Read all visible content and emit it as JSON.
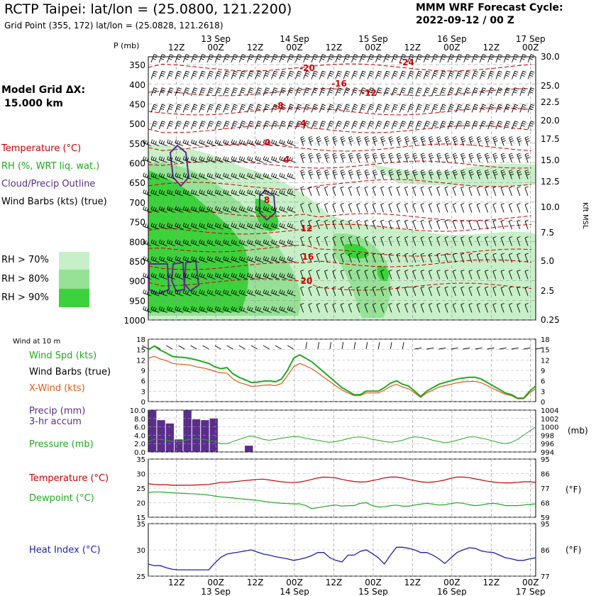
{
  "header": {
    "title": "RCTP Taipei:  lat/lon = (25.0800, 121.2200)",
    "subtitle": "Grid Point (355, 172) lat/lon = (25.0828, 121.2618)",
    "forecast_line1": "MMM WRF Forecast Cycle:",
    "forecast_line2": "2022-09-12 / 00  Z",
    "model_grid_line1": "Model Grid ΔX:",
    "model_grid_line2": "15.000 km"
  },
  "time_axis": {
    "hour_labels": [
      "12Z",
      "00Z",
      "12Z",
      "00Z",
      "12Z",
      "00Z",
      "12Z",
      "00Z",
      "12Z",
      "00Z"
    ],
    "day_labels": [
      "13 Sep",
      "14 Sep",
      "15 Sep",
      "16 Sep",
      "17 Sep"
    ]
  },
  "legend": {
    "temperature": "Temperature (°C)",
    "rh": "RH (%, WRT liq. wat.)",
    "cloud": "Cloud/Precip Outline",
    "wind_barbs": "Wind Barbs (kts) (true)",
    "rh70": "RH > 70%",
    "rh80": "RH > 80%",
    "rh90": "RH > 90%",
    "wind_at_10m": "Wind at 10 m",
    "wind_spd": "Wind Spd (kts)",
    "wind_barbs_true": "Wind Barbs (true)",
    "x_wind": "X-Wind (kts)",
    "precip1": "Precip (mm)",
    "precip2": "3-hr accum",
    "pressure": "Pressure (mb)",
    "temperature_sfc": "Temperature (°C)",
    "dewpoint": "Dewpoint (°C)",
    "heat_index": "Heat Index (°C)"
  },
  "colors": {
    "temperature": "#cc0000",
    "rh_green": "#22aa22",
    "cloud": "#5a2d8c",
    "xwind": "#e05a1a",
    "heat_index": "#1f1fb4",
    "rh70": "#c8f0c8",
    "rh80": "#96e196",
    "rh90": "#3cd23c"
  },
  "chart_data": [
    {
      "type": "heatmap",
      "panel": "cross-section",
      "ylabel": "P (mb)",
      "ylabel_right": "Kft MSL",
      "pressure_ticks": [
        "350",
        "400",
        "450",
        "500",
        "550",
        "600",
        "650",
        "700",
        "750",
        "800",
        "850",
        "900",
        "950",
        "1000"
      ],
      "height_ticks": [
        "30.0",
        "25.0",
        "22.5",
        "20.0",
        "17.5",
        "15.0",
        "12.5",
        "10.0",
        "7.5",
        "5.0",
        "2.5",
        "0.25"
      ],
      "temperature_contour_labels": [
        "-24",
        "-20",
        "-16",
        "-12",
        "-8",
        "-4",
        "0",
        "4",
        "8",
        "12",
        "16",
        "20"
      ]
    },
    {
      "type": "line",
      "panel": "10 m wind",
      "yticks": [
        "18",
        "15",
        "12",
        "9",
        "6",
        "3",
        "0"
      ],
      "ylim": [
        0,
        18
      ],
      "series": [
        {
          "name": "Wind Spd (kts)",
          "values": [
            15.0,
            16.0,
            14.8,
            14.0,
            13.0,
            12.8,
            12.7,
            12.4,
            12.0,
            11.5,
            11.0,
            10.0,
            9.5,
            9.8,
            8.0,
            7.0,
            6.3,
            5.5,
            5.6,
            5.9,
            6.0,
            5.7,
            6.5,
            9.0,
            12.5,
            13.5,
            12.5,
            11.5,
            10.0,
            8.5,
            7.0,
            5.5,
            4.0,
            3.0,
            2.0,
            2.0,
            3.0,
            3.0,
            3.0,
            4.0,
            5.3,
            6.0,
            5.0,
            4.5,
            3.0,
            1.5,
            3.0,
            4.0,
            5.0,
            5.5,
            6.0,
            6.5,
            6.8,
            7.0,
            7.0,
            6.5,
            5.5,
            4.5,
            3.5,
            2.5,
            2.0,
            1.0,
            1.0,
            3.0,
            4.5
          ]
        },
        {
          "name": "X-Wind (kts)",
          "values": [
            12.5,
            13.0,
            12.3,
            11.8,
            11.0,
            10.8,
            10.7,
            10.5,
            10.0,
            9.7,
            9.3,
            8.7,
            8.3,
            8.2,
            6.5,
            5.5,
            5.0,
            4.4,
            4.5,
            4.7,
            4.8,
            4.6,
            5.2,
            7.5,
            10.0,
            11.0,
            10.3,
            9.5,
            8.3,
            7.0,
            5.8,
            4.5,
            3.3,
            2.5,
            1.7,
            1.7,
            2.5,
            2.5,
            2.5,
            3.3,
            4.4,
            5.0,
            4.2,
            3.7,
            2.5,
            1.2,
            2.5,
            3.3,
            4.2,
            4.6,
            5.0,
            5.4,
            5.7,
            5.8,
            5.8,
            5.4,
            4.6,
            3.7,
            2.9,
            2.1,
            1.7,
            0.8,
            0.8,
            2.5,
            3.7
          ]
        }
      ]
    },
    {
      "type": "bar",
      "panel": "precip & pressure",
      "yticks_left": [
        "10.0",
        "8.0",
        "6.0",
        "4.0",
        "2.0",
        "0.0"
      ],
      "yticks_right": [
        "1004",
        "1002",
        "1000",
        "998",
        "996",
        "994"
      ],
      "ylabel_right": "(mb)",
      "ylim": [
        0,
        10
      ],
      "ylim_right": [
        994,
        1004
      ],
      "series": [
        {
          "name": "Precip (mm)",
          "values": [
            10.0,
            7.6,
            6.8,
            3.0,
            10.0,
            7.8,
            7.6,
            8.0,
            0.0,
            0.0,
            0.0,
            1.5
          ]
        },
        {
          "name": "Pressure (mb)",
          "values": [
            996.5,
            997.0,
            997.0,
            996.8,
            996.5,
            996.5,
            996.8,
            997.0,
            997.2,
            997.0,
            996.8,
            996.5,
            996.0,
            996.0,
            996.5,
            997.0,
            997.5,
            997.8,
            997.5,
            997.0,
            996.8,
            997.0,
            997.3,
            997.5,
            997.7,
            997.6,
            997.3,
            997.0,
            996.8,
            996.5,
            996.3,
            996.5,
            996.8,
            997.2,
            997.5,
            997.6,
            997.4,
            997.0,
            996.8,
            996.5,
            996.3,
            996.5,
            996.8,
            997.3,
            997.6,
            997.5,
            997.2,
            996.8,
            996.5,
            996.2,
            996.4,
            996.8,
            997.2,
            997.6,
            997.6,
            997.3,
            997.0,
            996.6,
            996.2,
            996.0,
            996.3,
            997.0,
            998.0,
            999.0,
            1000.0
          ]
        }
      ]
    },
    {
      "type": "line",
      "panel": "temperature & dewpoint",
      "yticks_left": [
        "35",
        "30",
        "25",
        "20",
        "15"
      ],
      "yticks_right": [
        "95",
        "86",
        "77",
        "68",
        "59"
      ],
      "ylabel_right": "(°F)",
      "ylim": [
        15,
        35
      ],
      "series": [
        {
          "name": "Temperature (°C)",
          "values": [
            26.5,
            26.3,
            26.2,
            26.2,
            26.0,
            26.0,
            26.0,
            26.0,
            26.1,
            26.2,
            26.3,
            26.6,
            27.0,
            27.0,
            27.2,
            27.4,
            27.6,
            27.8,
            28.0,
            28.1,
            27.8,
            27.5,
            27.2,
            27.0,
            26.9,
            27.1,
            27.5,
            28.0,
            28.5,
            28.8,
            28.7,
            28.5,
            28.0,
            27.6,
            27.3,
            27.1,
            27.2,
            27.6,
            28.0,
            28.5,
            28.8,
            28.8,
            28.5,
            28.0,
            27.6,
            27.2,
            27.0,
            27.1,
            27.4,
            27.8,
            28.4,
            28.8,
            28.8,
            28.6,
            28.2,
            27.8,
            27.4,
            27.1,
            26.9,
            26.8,
            26.8,
            27.0,
            27.2,
            27.2,
            27.0
          ]
        },
        {
          "name": "Dewpoint (°C)",
          "values": [
            23.5,
            23.7,
            23.7,
            23.5,
            23.4,
            23.3,
            23.2,
            23.1,
            23.0,
            22.8,
            22.6,
            22.3,
            22.0,
            21.8,
            21.6,
            21.4,
            21.2,
            21.0,
            20.8,
            20.5,
            20.2,
            20.0,
            19.8,
            19.7,
            19.6,
            19.6,
            19.0,
            18.0,
            18.3,
            18.6,
            19.0,
            19.2,
            18.8,
            19.0,
            19.0,
            19.8,
            20.0,
            19.0,
            18.5,
            18.6,
            19.0,
            19.2,
            18.8,
            18.8,
            19.2,
            19.5,
            19.8,
            19.5,
            19.2,
            19.3,
            19.7,
            20.0,
            19.8,
            19.3,
            19.0,
            19.2,
            19.6,
            19.8,
            19.5,
            19.0,
            19.0,
            19.0,
            19.2,
            19.4,
            19.6
          ]
        }
      ]
    },
    {
      "type": "line",
      "panel": "heat index",
      "yticks_left": [
        "35",
        "30",
        "25"
      ],
      "yticks_right": [
        "95",
        "86",
        "77"
      ],
      "ylabel_right": "(°F)",
      "ylim": [
        25,
        35
      ],
      "series": [
        {
          "name": "Heat Index (°C)",
          "values": [
            27.3,
            27.0,
            27.0,
            26.6,
            26.3,
            26.2,
            26.2,
            26.2,
            26.2,
            26.2,
            26.2,
            27.5,
            28.6,
            29.2,
            29.4,
            29.6,
            29.8,
            30.0,
            29.6,
            29.2,
            29.0,
            28.7,
            28.5,
            28.3,
            28.0,
            28.2,
            28.5,
            28.9,
            29.5,
            29.5,
            28.5,
            28.0,
            27.7,
            29.0,
            29.0,
            29.7,
            30.0,
            29.3,
            28.5,
            27.3,
            29.0,
            30.5,
            30.5,
            30.3,
            30.0,
            29.5,
            29.5,
            29.0,
            28.3,
            27.4,
            28.5,
            29.5,
            30.0,
            30.4,
            30.3,
            29.8,
            29.6,
            29.5,
            29.0,
            28.5,
            28.3,
            28.0,
            28.0,
            28.3,
            28.5
          ]
        }
      ]
    }
  ]
}
